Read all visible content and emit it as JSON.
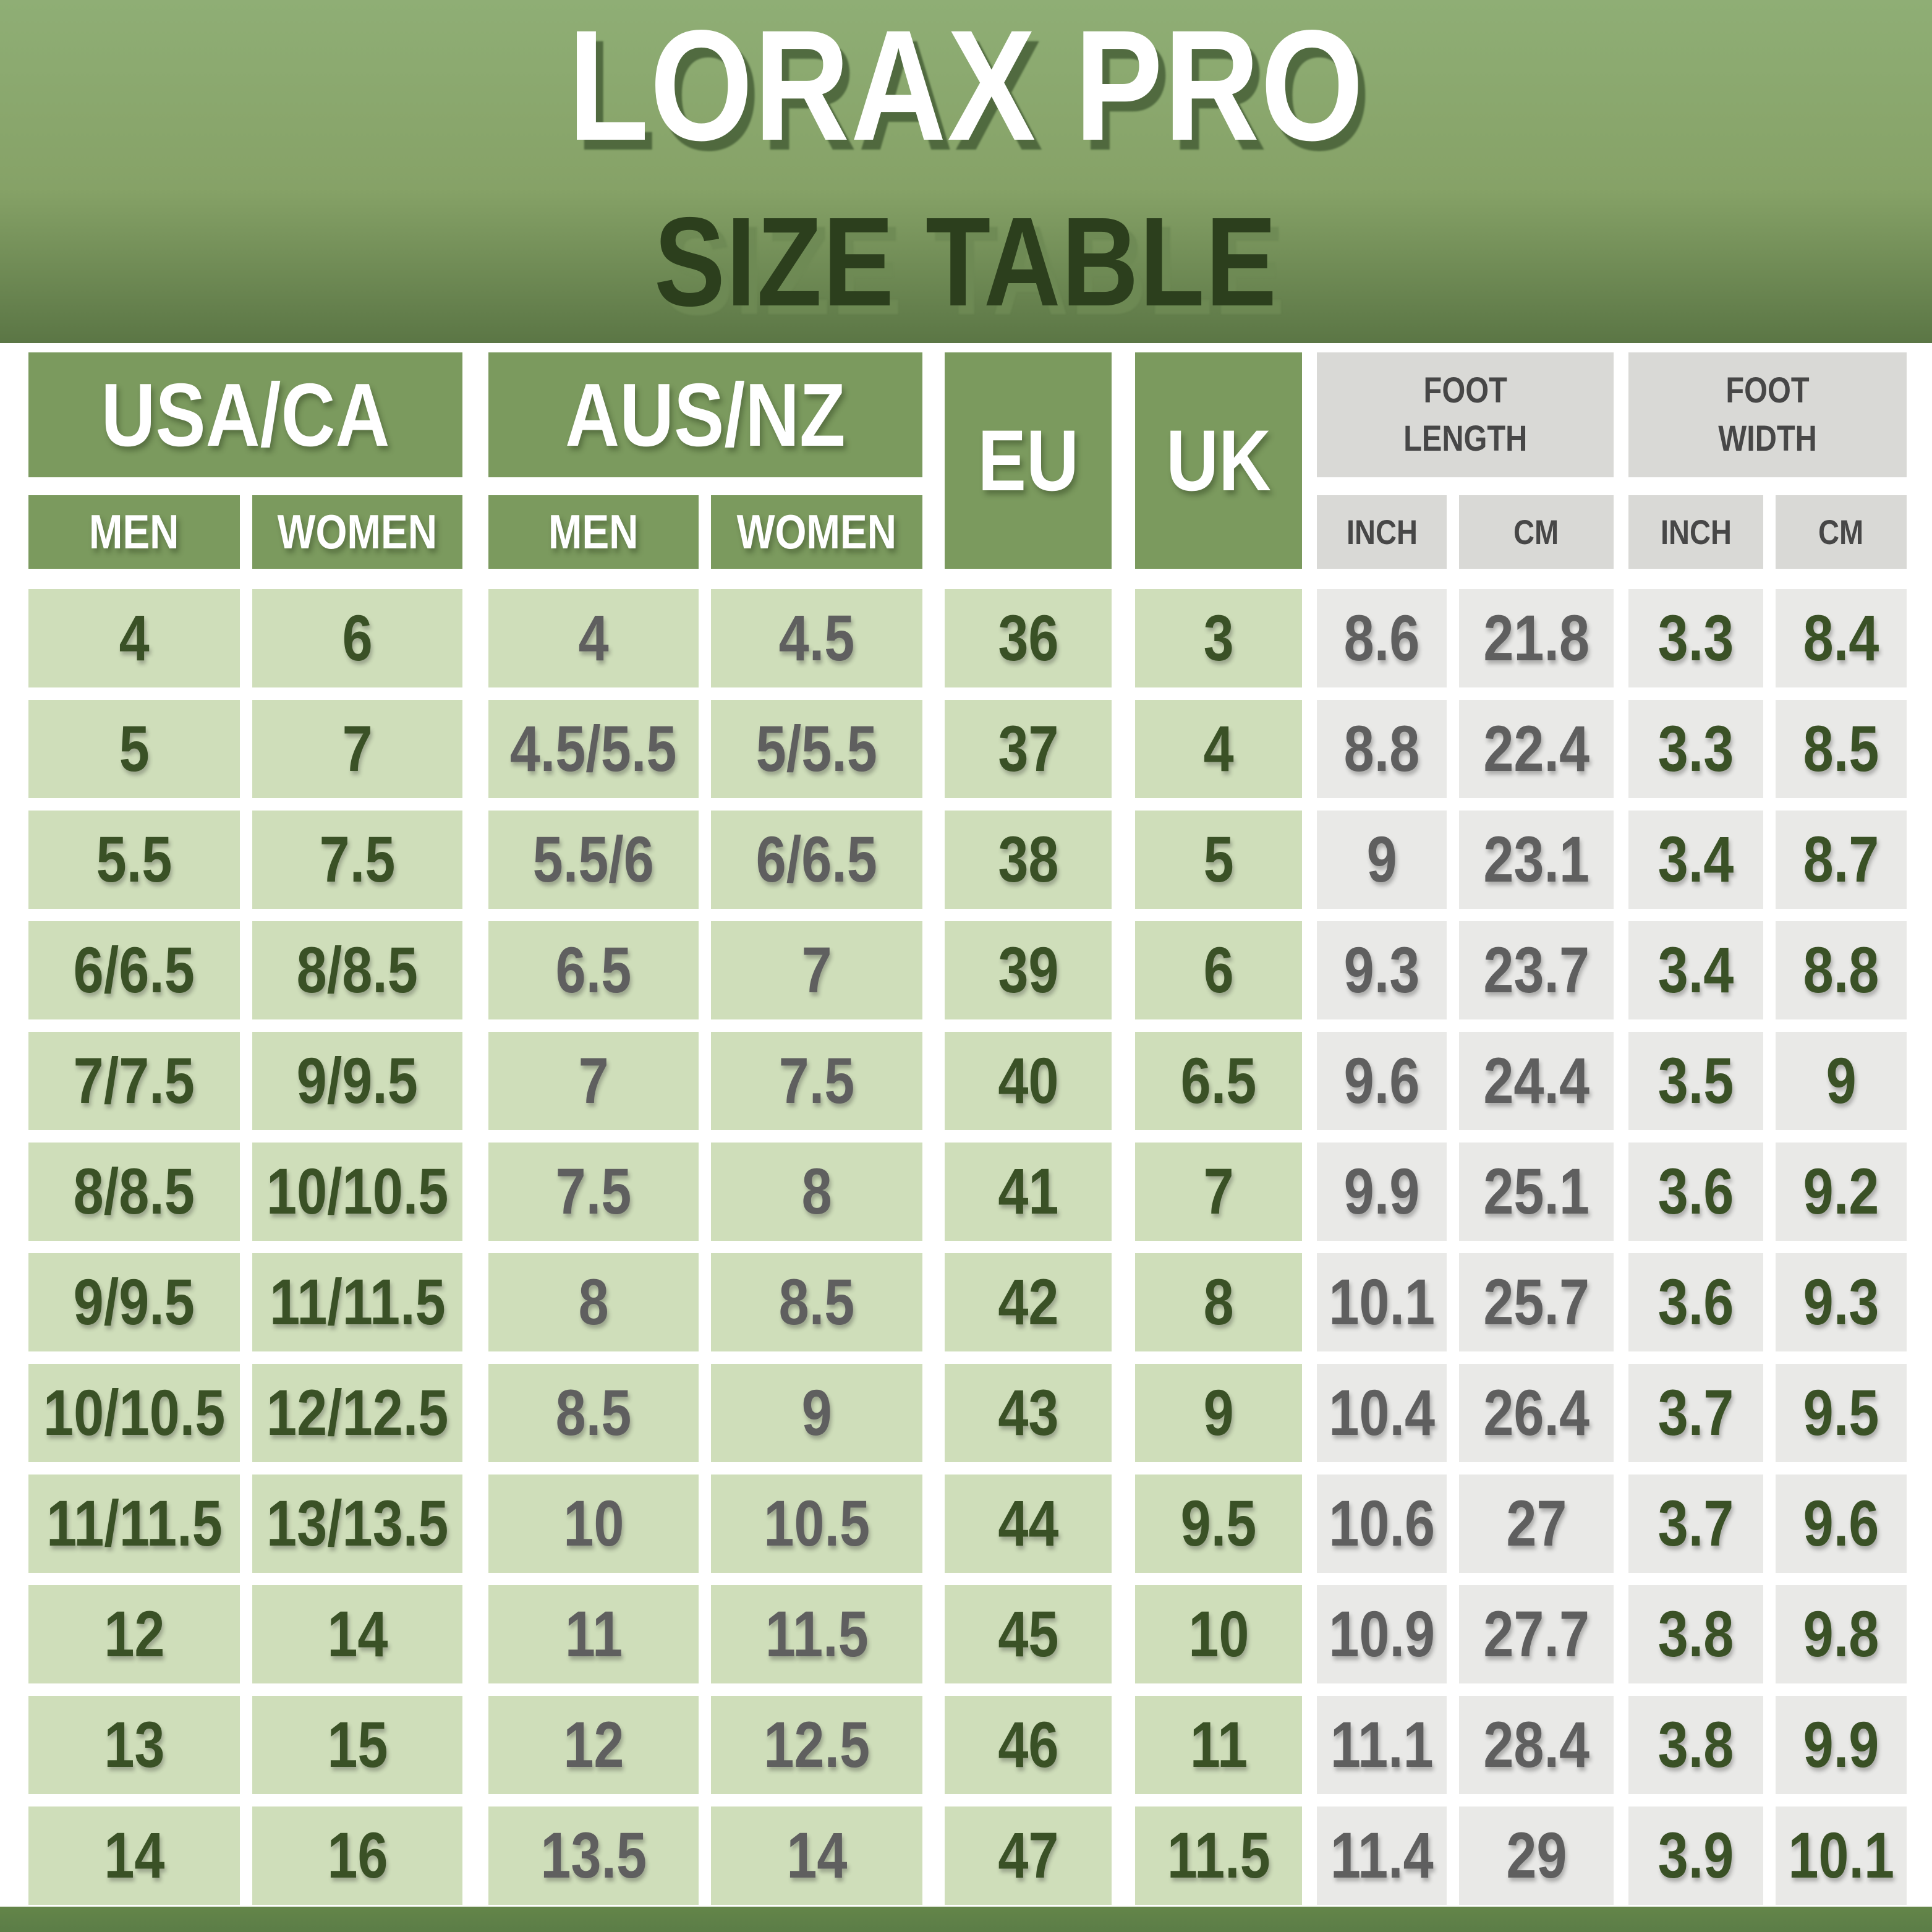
{
  "page": {
    "title_line1": "LORAX PRO",
    "title_line2": "SIZE TABLE"
  },
  "chart_data": {
    "type": "table",
    "title": "LORAX PRO SIZE TABLE",
    "column_groups": [
      {
        "label": "USA/CA",
        "columns": [
          "MEN",
          "WOMEN"
        ]
      },
      {
        "label": "AUS/NZ",
        "columns": [
          "MEN",
          "WOMEN"
        ]
      },
      {
        "label": "EU",
        "columns": []
      },
      {
        "label": "UK",
        "columns": []
      },
      {
        "label": "FOOT\nLENGTH",
        "columns": [
          "INCH",
          "CM"
        ]
      },
      {
        "label": "FOOT\nWIDTH",
        "columns": [
          "INCH",
          "CM"
        ]
      }
    ],
    "columns": [
      "USA/CA MEN",
      "USA/CA WOMEN",
      "AUS/NZ MEN",
      "AUS/NZ WOMEN",
      "EU",
      "UK",
      "FOOT LENGTH INCH",
      "FOOT LENGTH CM",
      "FOOT WIDTH INCH",
      "FOOT WIDTH CM"
    ],
    "rows": [
      [
        "4",
        "6",
        "4",
        "4.5",
        "36",
        "3",
        "8.6",
        "21.8",
        "3.3",
        "8.4"
      ],
      [
        "5",
        "7",
        "4.5/5.5",
        "5/5.5",
        "37",
        "4",
        "8.8",
        "22.4",
        "3.3",
        "8.5"
      ],
      [
        "5.5",
        "7.5",
        "5.5/6",
        "6/6.5",
        "38",
        "5",
        "9",
        "23.1",
        "3.4",
        "8.7"
      ],
      [
        "6/6.5",
        "8/8.5",
        "6.5",
        "7",
        "39",
        "6",
        "9.3",
        "23.7",
        "3.4",
        "8.8"
      ],
      [
        "7/7.5",
        "9/9.5",
        "7",
        "7.5",
        "40",
        "6.5",
        "9.6",
        "24.4",
        "3.5",
        "9"
      ],
      [
        "8/8.5",
        "10/10.5",
        "7.5",
        "8",
        "41",
        "7",
        "9.9",
        "25.1",
        "3.6",
        "9.2"
      ],
      [
        "9/9.5",
        "11/11.5",
        "8",
        "8.5",
        "42",
        "8",
        "10.1",
        "25.7",
        "3.6",
        "9.3"
      ],
      [
        "10/10.5",
        "12/12.5",
        "8.5",
        "9",
        "43",
        "9",
        "10.4",
        "26.4",
        "3.7",
        "9.5"
      ],
      [
        "11/11.5",
        "13/13.5",
        "10",
        "10.5",
        "44",
        "9.5",
        "10.6",
        "27",
        "3.7",
        "9.6"
      ],
      [
        "12",
        "14",
        "11",
        "11.5",
        "45",
        "10",
        "10.9",
        "27.7",
        "3.8",
        "9.8"
      ],
      [
        "13",
        "15",
        "12",
        "12.5",
        "46",
        "11",
        "11.1",
        "28.4",
        "3.8",
        "9.9"
      ],
      [
        "14",
        "16",
        "13.5",
        "14",
        "47",
        "11.5",
        "11.4",
        "29",
        "3.9",
        "10.1"
      ]
    ],
    "layout_hints": {
      "grid": "cells separated by white gaps",
      "legend": "none"
    }
  },
  "colors": {
    "banner-top": "#8fae75",
    "banner-bottom": "#5b7645",
    "hdr-green": "#7b9a5e",
    "cell-green": "#cfdeba",
    "hdr-gray": "#d9d9d6",
    "cell-gray": "#e9e9e7",
    "text-green": "#3a5126",
    "text-gray": "#5f5f5f",
    "hdr-gray-text": "#474747",
    "strip": "#5b7d47",
    "title-light": "#ffffff",
    "title-dark": "#2c3f1d"
  }
}
